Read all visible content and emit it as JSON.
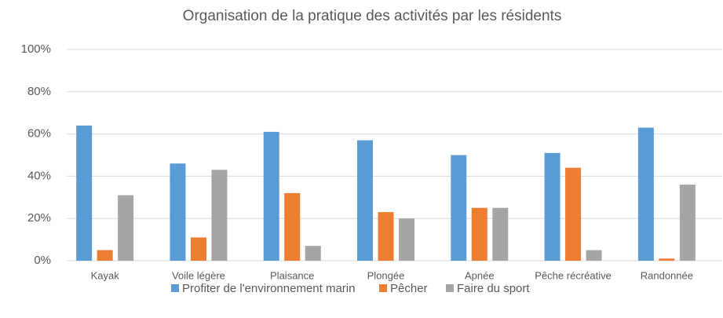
{
  "chart_data": {
    "type": "bar",
    "title": "Organisation de la pratique des activités par les résidents",
    "categories": [
      "Kayak",
      "Voile légère",
      "Plaisance",
      "Plongée",
      "Apnée",
      "Pêche récréative",
      "Randonnée"
    ],
    "series": [
      {
        "name": "Profiter de l'environnement marin",
        "color": "#5b9bd5",
        "values": [
          64,
          46,
          61,
          57,
          50,
          51,
          63
        ]
      },
      {
        "name": "Pêcher",
        "color": "#ed7d31",
        "values": [
          5,
          11,
          32,
          23,
          25,
          44,
          1
        ]
      },
      {
        "name": "Faire du sport",
        "color": "#a5a5a5",
        "values": [
          31,
          43,
          7,
          20,
          25,
          5,
          36
        ]
      }
    ],
    "ylim": [
      0,
      100
    ],
    "yticks": [
      {
        "value": 0,
        "label": "0%"
      },
      {
        "value": 20,
        "label": "20%"
      },
      {
        "value": 40,
        "label": "40%"
      },
      {
        "value": 60,
        "label": "60%"
      },
      {
        "value": 80,
        "label": "80%"
      },
      {
        "value": 100,
        "label": "100%"
      }
    ],
    "grid": true,
    "legend": "bottom"
  }
}
